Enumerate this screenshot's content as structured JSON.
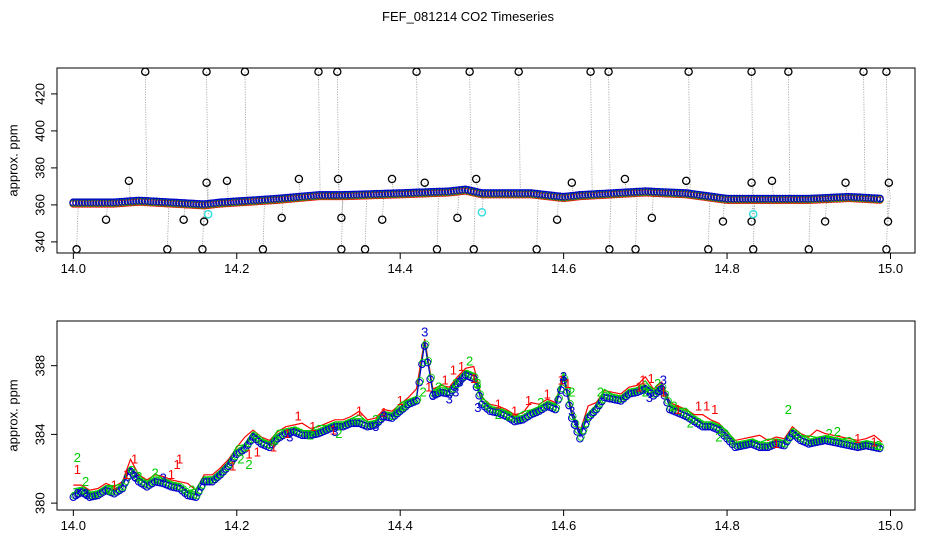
{
  "title": "FEF_081214  CO2 Timeseries",
  "colors": {
    "c1": "#ff0000",
    "c2": "#00cc00",
    "c3": "#0000cc",
    "cyan": "#33dddd",
    "black": "#000000"
  },
  "chart_data": [
    {
      "type": "scatter",
      "name": "upper",
      "xlim": [
        13.98,
        15.03
      ],
      "ylim": [
        334,
        434
      ],
      "xticks": [
        14.0,
        14.2,
        14.4,
        14.6,
        14.8,
        15.0
      ],
      "xtick_labels": [
        "14.0",
        "14.2",
        "14.4",
        "14.6",
        "14.8",
        "15.0"
      ],
      "yticks": [
        340,
        360,
        380,
        400,
        420
      ],
      "ytick_labels": [
        "340",
        "",
        "",
        "",
        "420"
      ],
      "ytick_labels_shown": [
        "340",
        "360",
        "380",
        "400",
        "420"
      ],
      "ylabel": "approx. ppm",
      "baseline": [
        [
          14.0,
          361
        ],
        [
          14.05,
          361
        ],
        [
          14.08,
          362
        ],
        [
          14.12,
          361
        ],
        [
          14.16,
          360
        ],
        [
          14.18,
          361
        ],
        [
          14.25,
          363
        ],
        [
          14.3,
          365
        ],
        [
          14.33,
          365
        ],
        [
          14.4,
          366
        ],
        [
          14.46,
          367
        ],
        [
          14.48,
          368
        ],
        [
          14.5,
          366
        ],
        [
          14.56,
          366
        ],
        [
          14.6,
          364
        ],
        [
          14.62,
          365
        ],
        [
          14.66,
          366
        ],
        [
          14.7,
          367
        ],
        [
          14.75,
          366
        ],
        [
          14.8,
          363
        ],
        [
          14.83,
          363
        ],
        [
          14.9,
          363
        ],
        [
          14.95,
          364
        ],
        [
          14.99,
          363
        ]
      ],
      "spikes_high": [
        [
          14.088,
          432
        ],
        [
          14.163,
          432
        ],
        [
          14.21,
          432
        ],
        [
          14.3,
          432
        ],
        [
          14.323,
          432
        ],
        [
          14.42,
          432
        ],
        [
          14.485,
          432
        ],
        [
          14.545,
          432
        ],
        [
          14.633,
          432
        ],
        [
          14.655,
          432
        ],
        [
          14.753,
          432
        ],
        [
          14.83,
          432
        ],
        [
          14.875,
          432
        ],
        [
          14.967,
          432
        ],
        [
          14.995,
          432
        ]
      ],
      "spikes_low": [
        [
          14.004,
          336
        ],
        [
          14.115,
          336
        ],
        [
          14.158,
          336
        ],
        [
          14.232,
          336
        ],
        [
          14.328,
          336
        ],
        [
          14.357,
          336
        ],
        [
          14.445,
          336
        ],
        [
          14.49,
          336
        ],
        [
          14.567,
          336
        ],
        [
          14.656,
          336
        ],
        [
          14.688,
          336
        ],
        [
          14.777,
          336
        ],
        [
          14.832,
          336
        ],
        [
          14.9,
          336
        ],
        [
          14.995,
          336
        ]
      ],
      "spikes_mid_low": [
        [
          14.04,
          352
        ],
        [
          14.135,
          352
        ],
        [
          14.16,
          351
        ],
        [
          14.255,
          353
        ],
        [
          14.328,
          353
        ],
        [
          14.378,
          352
        ],
        [
          14.47,
          353
        ],
        [
          14.592,
          352
        ],
        [
          14.708,
          353
        ],
        [
          14.795,
          351
        ],
        [
          14.83,
          351
        ],
        [
          14.92,
          351
        ],
        [
          14.997,
          351
        ]
      ],
      "spikes_mid_high": [
        [
          14.068,
          373
        ],
        [
          14.163,
          372
        ],
        [
          14.188,
          373
        ],
        [
          14.276,
          374
        ],
        [
          14.324,
          374
        ],
        [
          14.39,
          374
        ],
        [
          14.43,
          372
        ],
        [
          14.493,
          374
        ],
        [
          14.61,
          372
        ],
        [
          14.675,
          374
        ],
        [
          14.75,
          373
        ],
        [
          14.83,
          372
        ],
        [
          14.855,
          373
        ],
        [
          14.945,
          372
        ],
        [
          14.998,
          372
        ]
      ],
      "cyan_points": [
        [
          14.165,
          355
        ],
        [
          14.5,
          356
        ],
        [
          14.832,
          355
        ]
      ]
    },
    {
      "type": "line",
      "name": "lower",
      "xlim": [
        13.98,
        15.03
      ],
      "ylim": [
        379.6,
        390.6
      ],
      "xticks": [
        14.0,
        14.2,
        14.4,
        14.6,
        14.8,
        15.0
      ],
      "xtick_labels": [
        "14.0",
        "14.2",
        "14.4",
        "14.6",
        "14.8",
        "15.0"
      ],
      "yticks": [
        380,
        384,
        388
      ],
      "ytick_labels": [
        "380",
        "384",
        "388"
      ],
      "ylabel": "approx. ppm",
      "series": [
        {
          "name": "1",
          "color": "#ff0000"
        },
        {
          "name": "2",
          "color": "#00cc00"
        },
        {
          "name": "3",
          "color": "#0000cc"
        }
      ],
      "x": [
        14.0,
        14.01,
        14.02,
        14.03,
        14.04,
        14.05,
        14.06,
        14.07,
        14.08,
        14.09,
        14.1,
        14.11,
        14.12,
        14.13,
        14.14,
        14.15,
        14.16,
        14.17,
        14.18,
        14.19,
        14.2,
        14.21,
        14.22,
        14.23,
        14.24,
        14.25,
        14.26,
        14.27,
        14.28,
        14.29,
        14.3,
        14.31,
        14.32,
        14.33,
        14.34,
        14.35,
        14.36,
        14.37,
        14.38,
        14.39,
        14.4,
        14.41,
        14.42,
        14.43,
        14.44,
        14.45,
        14.46,
        14.47,
        14.48,
        14.49,
        14.5,
        14.51,
        14.52,
        14.53,
        14.54,
        14.55,
        14.56,
        14.57,
        14.58,
        14.59,
        14.6,
        14.61,
        14.62,
        14.63,
        14.64,
        14.65,
        14.66,
        14.67,
        14.68,
        14.69,
        14.7,
        14.71,
        14.72,
        14.73,
        14.74,
        14.75,
        14.76,
        14.77,
        14.78,
        14.79,
        14.8,
        14.81,
        14.82,
        14.83,
        14.84,
        14.85,
        14.86,
        14.87,
        14.88,
        14.89,
        14.9,
        14.91,
        14.92,
        14.93,
        14.94,
        14.95,
        14.96,
        14.97,
        14.98,
        14.99
      ],
      "y3": [
        380.5,
        380.8,
        380.5,
        380.6,
        380.9,
        380.7,
        381.0,
        382.0,
        381.4,
        381.1,
        381.4,
        381.3,
        381.1,
        381.0,
        380.6,
        380.5,
        381.4,
        381.4,
        381.8,
        382.3,
        383.0,
        383.3,
        384.0,
        383.6,
        383.4,
        383.9,
        384.2,
        384.3,
        384.1,
        384.1,
        384.2,
        384.4,
        384.6,
        384.6,
        384.8,
        384.8,
        384.6,
        384.7,
        385.2,
        385.1,
        385.5,
        385.9,
        386.1,
        389.3,
        386.4,
        386.6,
        386.5,
        387.1,
        387.6,
        387.4,
        385.9,
        385.5,
        385.4,
        385.2,
        384.9,
        385.0,
        385.3,
        385.5,
        385.8,
        385.6,
        387.3,
        385.1,
        383.9,
        385.1,
        385.6,
        386.3,
        386.2,
        386.1,
        386.5,
        386.6,
        386.8,
        386.4,
        386.8,
        385.6,
        385.4,
        385.2,
        384.9,
        384.6,
        384.6,
        384.4,
        383.9,
        383.4,
        383.5,
        383.6,
        383.4,
        383.4,
        383.6,
        383.5,
        384.2,
        383.8,
        383.6,
        383.7,
        383.8,
        383.7,
        383.6,
        383.5,
        383.4,
        383.5,
        383.4,
        383.3
      ],
      "labels1": [
        [
          14.005,
          381.9
        ],
        [
          14.05,
          381.0
        ],
        [
          14.065,
          381.6
        ],
        [
          14.075,
          382.5
        ],
        [
          14.12,
          381.6
        ],
        [
          14.127,
          382.2
        ],
        [
          14.13,
          382.5
        ],
        [
          14.195,
          382.1
        ],
        [
          14.215,
          382.8
        ],
        [
          14.225,
          382.9
        ],
        [
          14.245,
          383.2
        ],
        [
          14.262,
          384.0
        ],
        [
          14.275,
          385.0
        ],
        [
          14.293,
          384.4
        ],
        [
          14.318,
          384.2
        ],
        [
          14.35,
          385.3
        ],
        [
          14.38,
          385.2
        ],
        [
          14.4,
          385.9
        ],
        [
          14.435,
          386.7
        ],
        [
          14.455,
          387.1
        ],
        [
          14.465,
          387.7
        ],
        [
          14.475,
          387.9
        ],
        [
          14.49,
          387.2
        ],
        [
          14.52,
          385.7
        ],
        [
          14.54,
          385.3
        ],
        [
          14.557,
          385.9
        ],
        [
          14.58,
          386.3
        ],
        [
          14.597,
          387.1
        ],
        [
          14.605,
          386.9
        ],
        [
          14.692,
          386.7
        ],
        [
          14.697,
          387.1
        ],
        [
          14.707,
          387.2
        ],
        [
          14.722,
          386.4
        ],
        [
          14.74,
          385.4
        ],
        [
          14.765,
          385.6
        ],
        [
          14.775,
          385.6
        ],
        [
          14.785,
          385.4
        ],
        [
          14.86,
          383.4
        ],
        [
          14.96,
          383.7
        ],
        [
          14.98,
          383.5
        ]
      ],
      "labels2": [
        [
          14.005,
          382.6
        ],
        [
          14.015,
          381.2
        ],
        [
          14.045,
          380.7
        ],
        [
          14.08,
          381.5
        ],
        [
          14.1,
          381.7
        ],
        [
          14.145,
          380.7
        ],
        [
          14.205,
          382.5
        ],
        [
          14.215,
          382.2
        ],
        [
          14.247,
          383.6
        ],
        [
          14.29,
          383.9
        ],
        [
          14.325,
          384.0
        ],
        [
          14.37,
          384.8
        ],
        [
          14.403,
          385.6
        ],
        [
          14.428,
          386.4
        ],
        [
          14.447,
          386.7
        ],
        [
          14.468,
          386.9
        ],
        [
          14.485,
          388.2
        ],
        [
          14.495,
          386.9
        ],
        [
          14.52,
          385.1
        ],
        [
          14.533,
          385.0
        ],
        [
          14.572,
          385.8
        ],
        [
          14.61,
          386.4
        ],
        [
          14.645,
          386.4
        ],
        [
          14.7,
          386.4
        ],
        [
          14.715,
          386.9
        ],
        [
          14.735,
          385.6
        ],
        [
          14.755,
          384.6
        ],
        [
          14.79,
          383.8
        ],
        [
          14.875,
          385.4
        ],
        [
          14.925,
          384.0
        ],
        [
          14.935,
          384.1
        ],
        [
          14.985,
          383.3
        ]
      ],
      "labels3": [
        [
          14.005,
          380.5
        ],
        [
          14.015,
          380.5
        ],
        [
          14.075,
          381.5
        ],
        [
          14.11,
          381.4
        ],
        [
          14.265,
          383.8
        ],
        [
          14.32,
          384.1
        ],
        [
          14.37,
          384.4
        ],
        [
          14.38,
          385.0
        ],
        [
          14.43,
          389.9
        ],
        [
          14.44,
          386.2
        ],
        [
          14.46,
          386.0
        ],
        [
          14.468,
          386.4
        ],
        [
          14.473,
          387.0
        ],
        [
          14.495,
          385.5
        ],
        [
          14.6,
          387.3
        ],
        [
          14.61,
          385.3
        ],
        [
          14.614,
          384.5
        ],
        [
          14.705,
          386.1
        ],
        [
          14.718,
          386.5
        ],
        [
          14.722,
          387.1
        ]
      ]
    }
  ]
}
